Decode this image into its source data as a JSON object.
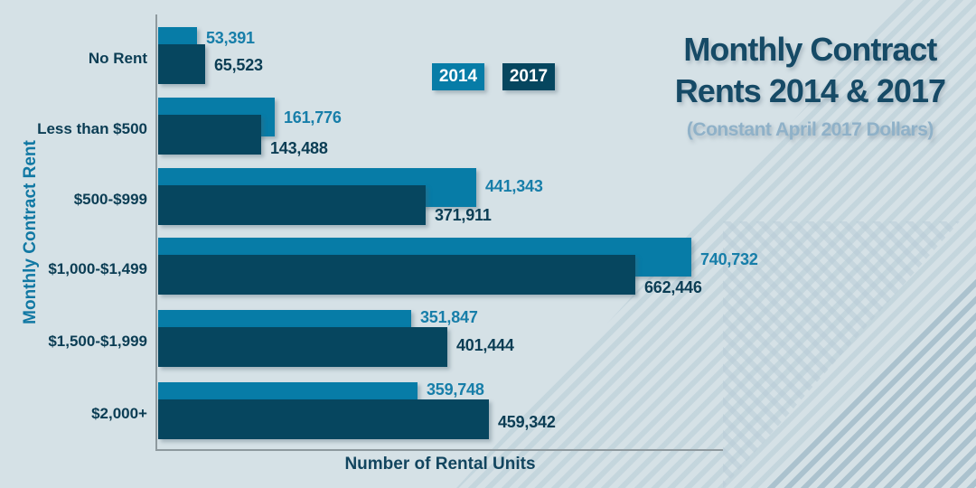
{
  "header": {
    "title_line1": "Monthly Contract",
    "title_line2": "Rents 2014 & 2017",
    "subtitle": "(Constant April 2017 Dollars)"
  },
  "axes": {
    "x_title": "Number of Rental Units",
    "y_title": "Monthly Contract Rent"
  },
  "colors": {
    "background": "#D5E1E6",
    "bar_2014": "#077CA7",
    "bar_2017": "#06465F",
    "value_label_2014": "#177EA9",
    "value_label_2017": "#0B3D54",
    "category_label": "#0B3D54",
    "title": "#164A66",
    "subtitle": "#8FB1C8",
    "axis_line": "#8E999E"
  },
  "chart_data": {
    "type": "bar",
    "orientation": "horizontal",
    "title": "Monthly Contract Rents 2014 & 2017",
    "subtitle": "(Constant April 2017 Dollars)",
    "xlabel": "Number of Rental Units",
    "ylabel": "Monthly Contract Rent",
    "grid": false,
    "value_axis_ticks_visible": false,
    "legend_position": "top-center",
    "categories": [
      "No Rent",
      "Less than $500",
      "$500-$999",
      "$1,000-$1,499",
      "$1,500-$1,999",
      "$2,000+"
    ],
    "series": [
      {
        "name": "2014",
        "color": "#077CA7",
        "values": [
          53391,
          161776,
          441343,
          740732,
          351847,
          359748
        ],
        "value_labels": [
          "53,391",
          "161,776",
          "441,343",
          "740,732",
          "351,847",
          "359,748"
        ]
      },
      {
        "name": "2017",
        "color": "#06465F",
        "values": [
          65523,
          143488,
          371911,
          662446,
          401444,
          459342
        ],
        "value_labels": [
          "65,523",
          "143,488",
          "371,911",
          "662,446",
          "401,444",
          "459,342"
        ]
      }
    ]
  }
}
